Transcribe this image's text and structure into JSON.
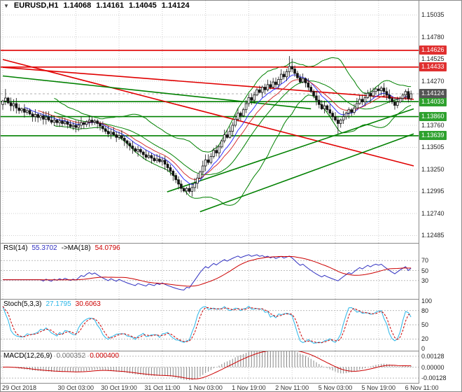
{
  "header": {
    "icon": "▼",
    "symbol_timeframe": "EURUSD,H1",
    "open": "1.14068",
    "high": "1.14161",
    "low": "1.14045",
    "close": "1.14124"
  },
  "colors": {
    "background": "#ffffff",
    "grid": "#cfcfcf",
    "bull": "#ffffff",
    "bear": "#141414",
    "candle_outline": "#141414",
    "bollinger": "#008000",
    "ma_fast": "#2020ff",
    "ma_slow": "#d02020",
    "trend_red": "#e00000",
    "trend_green": "#008000",
    "badge_red": "#e03030",
    "badge_green": "#2ea12e",
    "badge_current": "#555555",
    "rsi_line": "#3030c0",
    "rsi_ma": "#cc0000",
    "stoch_k": "#29b6e8",
    "stoch_d": "#cc0000",
    "macd_hist": "#888888",
    "macd_signal": "#cc0000",
    "axis_text": "#222222"
  },
  "chart_data": {
    "type": "candlestick",
    "symbol": "EURUSD",
    "timeframe": "H1",
    "current_bar": {
      "open": 1.14068,
      "high": 1.14161,
      "low": 1.14045,
      "close": 1.14124
    },
    "price_scale": {
      "min": 1.124,
      "max": 1.152,
      "ticks": [
        1.15035,
        1.1478,
        1.14525,
        1.1427,
        1.14015,
        1.1376,
        1.13505,
        1.1325,
        1.12995,
        1.1274,
        1.12485
      ]
    },
    "time_axis": {
      "candles_total": 152,
      "labels": [
        {
          "text": "29 Oct 2018",
          "i": 0
        },
        {
          "text": "30 Oct 03:00",
          "i": 27
        },
        {
          "text": "30 Oct 19:00",
          "i": 43
        },
        {
          "text": "31 Oct 11:00",
          "i": 59
        },
        {
          "text": "1 Nov 03:00",
          "i": 75
        },
        {
          "text": "1 Nov 19:00",
          "i": 91
        },
        {
          "text": "2 Nov 11:00",
          "i": 107
        },
        {
          "text": "5 Nov 03:00",
          "i": 123
        },
        {
          "text": "5 Nov 19:00",
          "i": 139
        },
        {
          "text": "6 Nov 11:00",
          "i": 155
        }
      ]
    },
    "candles": {
      "closes": [
        1.1404,
        1.14075,
        1.1402,
        1.13985,
        1.1401,
        1.1396,
        1.1393,
        1.1395,
        1.1391,
        1.1393,
        1.1389,
        1.1386,
        1.13885,
        1.1385,
        1.1387,
        1.1383,
        1.13855,
        1.1382,
        1.13795,
        1.1382,
        1.1379,
        1.1381,
        1.1378,
        1.138,
        1.1377,
        1.13745,
        1.1376,
        1.13735,
        1.1376,
        1.1379,
        1.1377,
        1.138,
        1.1382,
        1.13795,
        1.1381,
        1.1378,
        1.1375,
        1.1372,
        1.1369,
        1.1366,
        1.1368,
        1.1365,
        1.1362,
        1.1364,
        1.1361,
        1.1358,
        1.1355,
        1.1352,
        1.1349,
        1.1346,
        1.1348,
        1.1345,
        1.1342,
        1.1339,
        1.1341,
        1.1338,
        1.1335,
        1.1337,
        1.1334,
        1.13355,
        1.1331,
        1.1327,
        1.1323,
        1.1318,
        1.1313,
        1.1308,
        1.1303,
        1.13,
        1.1303,
        1.12995,
        1.1304,
        1.1309,
        1.1315,
        1.1322,
        1.1329,
        1.1336,
        1.1333,
        1.134,
        1.1347,
        1.1344,
        1.1351,
        1.1358,
        1.1365,
        1.1362,
        1.1369,
        1.1376,
        1.1383,
        1.139,
        1.1387,
        1.1394,
        1.1401,
        1.1408,
        1.1405,
        1.1411,
        1.1417,
        1.1414,
        1.142,
        1.1417,
        1.1423,
        1.142,
        1.1426,
        1.1423,
        1.1429,
        1.1435,
        1.1432,
        1.1438,
        1.1444,
        1.1441,
        1.1436,
        1.1431,
        1.1426,
        1.143,
        1.1425,
        1.142,
        1.1415,
        1.141,
        1.1405,
        1.14,
        1.1395,
        1.13985,
        1.1394,
        1.139,
        1.1386,
        1.1382,
        1.1378,
        1.1382,
        1.1386,
        1.139,
        1.1394,
        1.1391,
        1.1396,
        1.1401,
        1.1406,
        1.1403,
        1.1408,
        1.1413,
        1.141,
        1.1415,
        1.1418,
        1.1416,
        1.1419,
        1.1415,
        1.1411,
        1.1407,
        1.1403,
        1.1399,
        1.1403,
        1.1407,
        1.1411,
        1.1415,
        1.14068,
        1.14124
      ],
      "extremes": {
        "1": {
          "high": 1.1418
        },
        "106": {
          "high": 1.1456
        },
        "107": {
          "high": 1.1453
        },
        "124": {
          "low": 1.1366
        },
        "151": {
          "high": 1.14161,
          "low": 1.14045
        }
      }
    },
    "levels": {
      "resistance": [
        1.14626,
        1.14433
      ],
      "support": [
        1.14033,
        1.1386,
        1.13639
      ],
      "current": 1.14124
    },
    "trendlines": [
      {
        "x1": 0,
        "p1": 1.1452,
        "x2": 1,
        "p2": 1.1329,
        "color": "red"
      },
      {
        "x1": 0,
        "p1": 1.1443,
        "x2": 1,
        "p2": 1.1406,
        "color": "red"
      },
      {
        "x1": 0,
        "p1": 1.1433,
        "x2": 0.75,
        "p2": 1.1395,
        "color": "green"
      },
      {
        "x1": 0.4,
        "p1": 1.1299,
        "x2": 1,
        "p2": 1.1395,
        "color": "green"
      },
      {
        "x1": 0.48,
        "p1": 1.1276,
        "x2": 1,
        "p2": 1.1366,
        "color": "green"
      }
    ],
    "overlays": {
      "bollinger": {
        "period": 20,
        "deviation": 2
      },
      "ma_fast": {
        "period": 8,
        "type": "ema"
      },
      "ma_slow": {
        "period": 13,
        "type": "ema"
      }
    },
    "indicators": {
      "rsi": {
        "label": "RSI(14)",
        "value": "55.3702",
        "ma_label": "->MA(18)",
        "ma_value": "54.0796",
        "period": 14,
        "ma_period": 18,
        "levels": [
          70,
          50,
          30
        ]
      },
      "stoch": {
        "label": "Stoch(5,3,3)",
        "k_value": "27.1795",
        "d_value": "30.6063",
        "k_period": 5,
        "slowing": 3,
        "d_period": 3,
        "levels": [
          100,
          80,
          50,
          20,
          0
        ]
      },
      "macd": {
        "label": "MACD(12,26,9)",
        "main_value": "0.000352",
        "signal_value": "0.000400",
        "fast": 12,
        "slow": 26,
        "signal_period": 9,
        "levels": [
          0.00128,
          0,
          -0.00128
        ]
      }
    }
  }
}
